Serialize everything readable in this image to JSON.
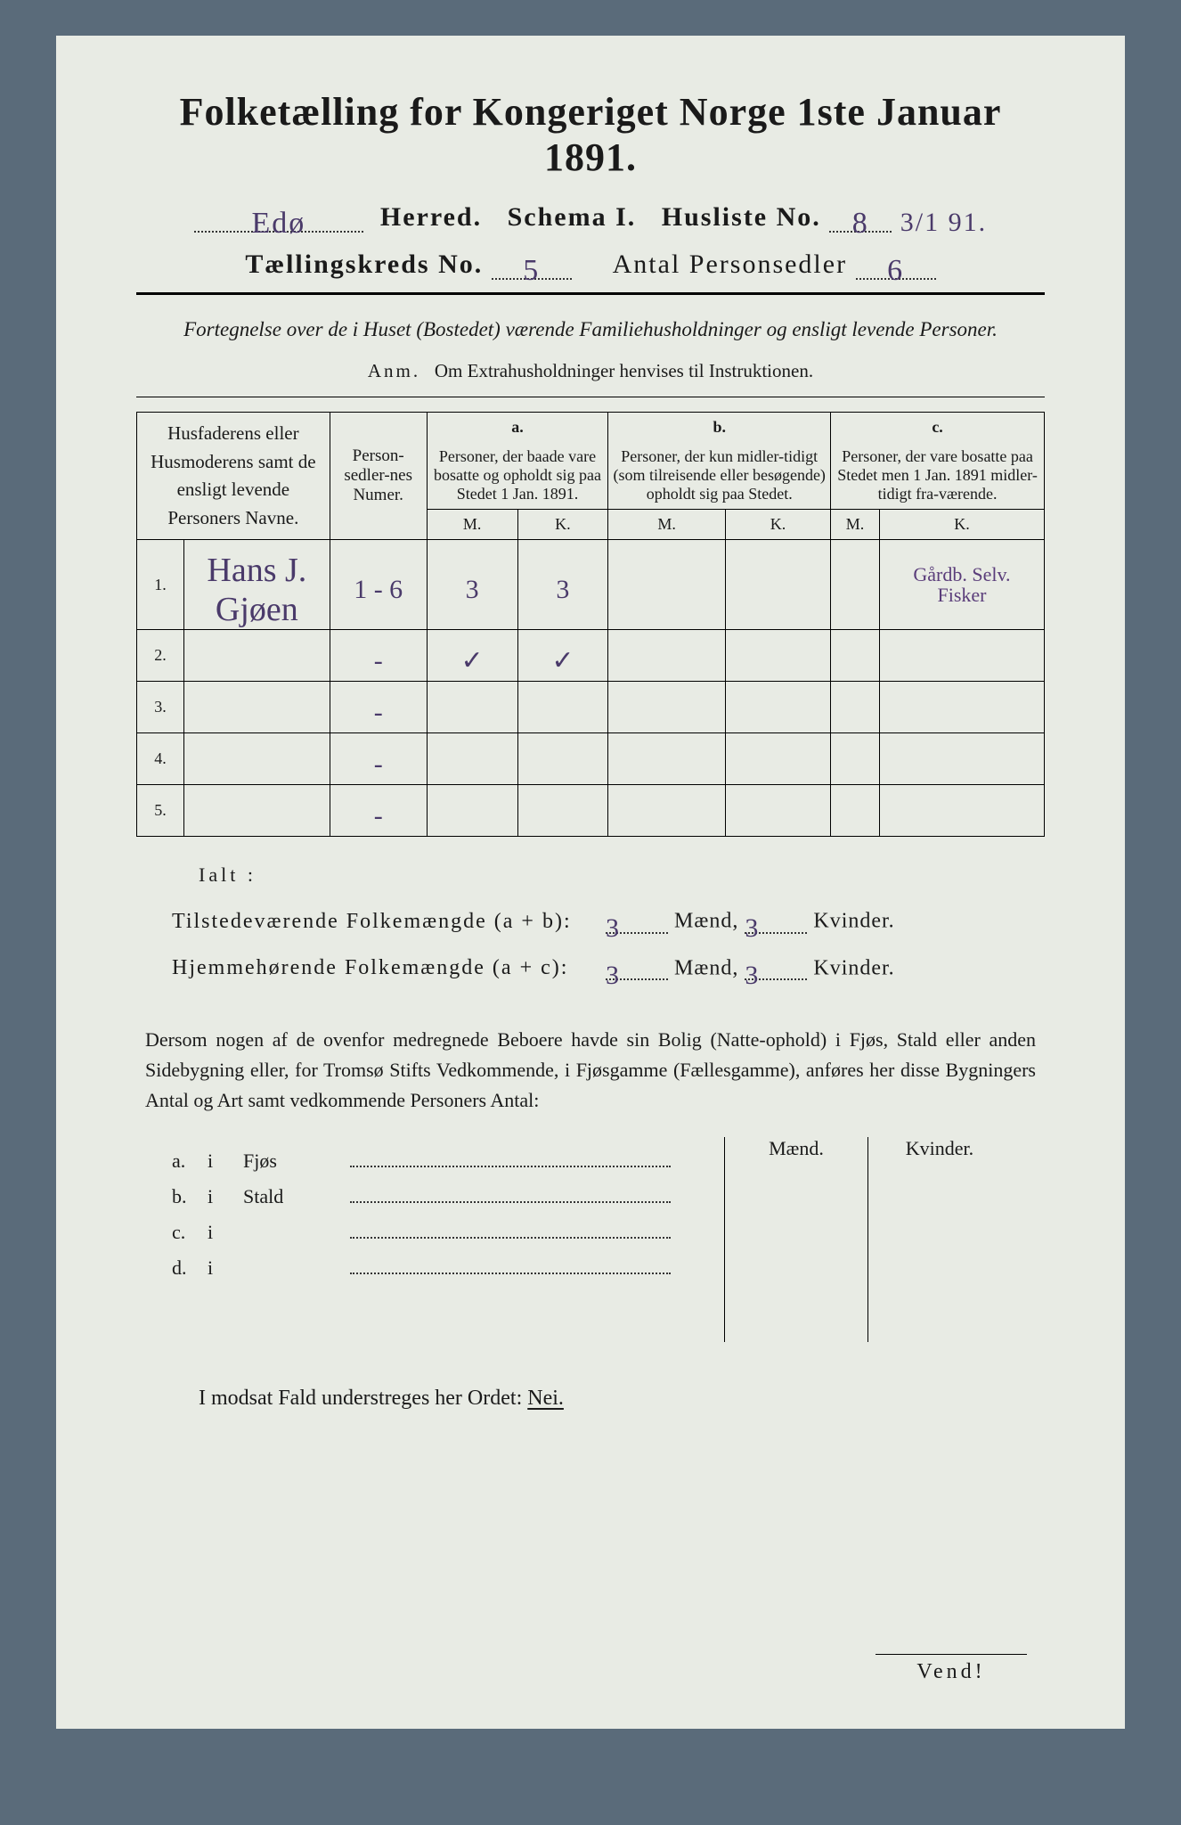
{
  "title": "Folketælling for Kongeriget Norge 1ste Januar 1891.",
  "header": {
    "herred_value": "Edø",
    "herred_label": "Herred.",
    "schema": "Schema I.",
    "husliste_label": "Husliste No.",
    "husliste_value": "8",
    "husliste_extra": "3/1 91.",
    "kreds_label": "Tællingskreds No.",
    "kreds_value": "5",
    "antal_label": "Antal Personsedler",
    "antal_value": "6"
  },
  "subhead": "Fortegnelse over de i Huset (Bostedet) værende Familiehusholdninger og ensligt levende Personer.",
  "anm": {
    "pre": "Anm.",
    "txt": "Om Extrahusholdninger henvises til Instruktionen."
  },
  "cols": {
    "name": "Husfaderens eller Husmoderens samt de ensligt levende Personers Navne.",
    "num": "Person-sedler-nes Numer.",
    "a_head": "a.",
    "a": "Personer, der baade vare bosatte og opholdt sig paa Stedet 1 Jan. 1891.",
    "b_head": "b.",
    "b": "Personer, der kun midler-tidigt (som tilreisende eller besøgende) opholdt sig paa Stedet.",
    "c_head": "c.",
    "c": "Personer, der vare bosatte paa Stedet men 1 Jan. 1891 midler-tidigt fra-værende.",
    "m": "M.",
    "k": "K."
  },
  "rows": [
    {
      "n": "1.",
      "name": "Hans J. Gjøen",
      "num": "1 - 6",
      "am": "3",
      "ak": "3",
      "bm": "",
      "bk": "",
      "cm": "",
      "note1": "Gårdb. Selv.",
      "note2": "Fisker"
    },
    {
      "n": "2.",
      "name": "",
      "num": "-",
      "am": "✓",
      "ak": "✓",
      "bm": "",
      "bk": "",
      "cm": "",
      "note1": "",
      "note2": ""
    },
    {
      "n": "3.",
      "name": "",
      "num": "-",
      "am": "",
      "ak": "",
      "bm": "",
      "bk": "",
      "cm": "",
      "note1": "",
      "note2": ""
    },
    {
      "n": "4.",
      "name": "",
      "num": "-",
      "am": "",
      "ak": "",
      "bm": "",
      "bk": "",
      "cm": "",
      "note1": "",
      "note2": ""
    },
    {
      "n": "5.",
      "name": "",
      "num": "-",
      "am": "",
      "ak": "",
      "bm": "",
      "bk": "",
      "cm": "",
      "note1": "",
      "note2": ""
    }
  ],
  "totals": {
    "ialt": "Ialt :",
    "tilst_lbl": "Tilstedeværende Folkemængde (a + b):",
    "hjem_lbl": "Hjemmehørende Folkemængde (a + c):",
    "m": "Mænd,",
    "k": "Kvinder.",
    "tilst_m": "3",
    "tilst_k": "3",
    "hjem_m": "3",
    "hjem_k": "3"
  },
  "para": "Dersom nogen af de ovenfor medregnede Beboere havde sin Bolig (Natte-ophold) i Fjøs, Stald eller anden Sidebygning eller, for Tromsø Stifts Vedkommende, i Fjøsgamme (Fællesgamme), anføres her disse Bygningers Antal og Art samt vedkommende Personers Antal:",
  "side": {
    "mhead": "Mænd.",
    "khead": "Kvinder.",
    "rows": [
      {
        "l": "a.",
        "lab": "Fjøs"
      },
      {
        "l": "b.",
        "lab": "Stald"
      },
      {
        "l": "c.",
        "lab": ""
      },
      {
        "l": "d.",
        "lab": ""
      }
    ],
    "i": "i"
  },
  "nei": {
    "pre": "I modsat Fald understreges her Ordet:",
    "word": "Nei."
  },
  "vend": "Vend!"
}
